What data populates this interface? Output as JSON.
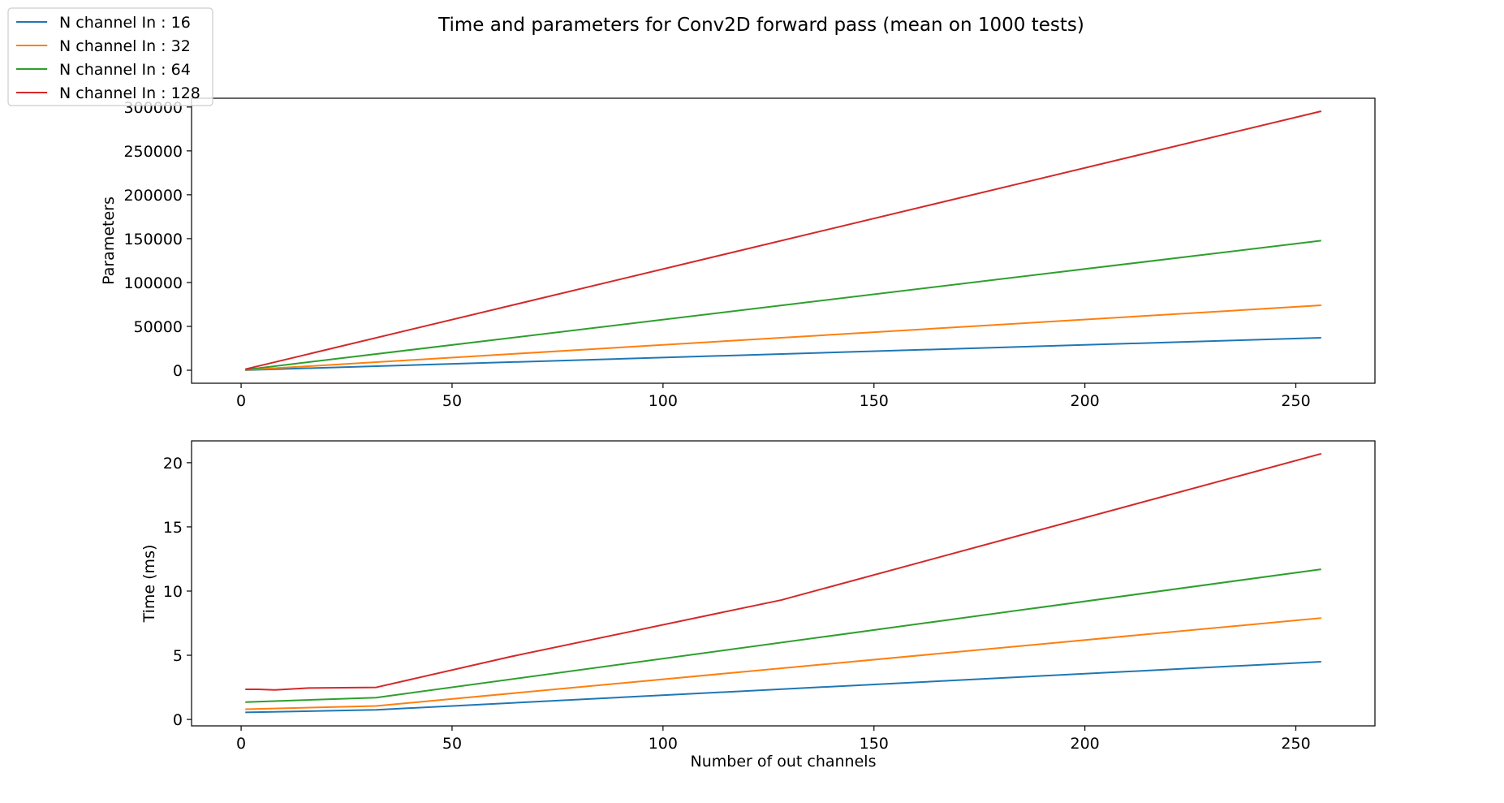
{
  "figure": {
    "title": "Time and parameters for Conv2D forward pass (mean on 1000 tests)"
  },
  "legend": {
    "placement": "top-left (outside axes)",
    "entries": [
      {
        "label": "N channel In : 16",
        "color": "#1f77b4"
      },
      {
        "label": "N channel In : 32",
        "color": "#ff7f0e"
      },
      {
        "label": "N channel In : 64",
        "color": "#2ca02c"
      },
      {
        "label": "N channel In : 128",
        "color": "#d62728"
      }
    ]
  },
  "chart_data": [
    {
      "type": "line",
      "xlabel": "",
      "ylabel": "Parameters",
      "xlim": [
        -11.75,
        268.75
      ],
      "ylim": [
        -14800,
        310000
      ],
      "xticks": [
        0,
        50,
        100,
        150,
        200,
        250
      ],
      "xtick_labels": [
        "0",
        "50",
        "100",
        "150",
        "200",
        "250"
      ],
      "yticks": [
        0,
        50000,
        100000,
        150000,
        200000,
        250000,
        300000
      ],
      "ytick_labels": [
        "0",
        "50000",
        "100000",
        "150000",
        "200000",
        "250000",
        "300000"
      ],
      "grid": false,
      "series": [
        {
          "name": "N channel In : 16",
          "color": "#1f77b4",
          "x": [
            1,
            256
          ],
          "y": [
            160,
            37000
          ]
        },
        {
          "name": "N channel In : 32",
          "color": "#ff7f0e",
          "x": [
            1,
            256
          ],
          "y": [
            300,
            74000
          ]
        },
        {
          "name": "N channel In : 64",
          "color": "#2ca02c",
          "x": [
            1,
            256
          ],
          "y": [
            600,
            147700
          ]
        },
        {
          "name": "N channel In : 128",
          "color": "#d62728",
          "x": [
            1,
            256
          ],
          "y": [
            1200,
            295200
          ]
        }
      ]
    },
    {
      "type": "line",
      "xlabel": "Number of out channels",
      "ylabel": "Time (ms)",
      "xlim": [
        -11.75,
        268.75
      ],
      "ylim": [
        -0.5,
        21.7
      ],
      "xticks": [
        0,
        50,
        100,
        150,
        200,
        250
      ],
      "xtick_labels": [
        "0",
        "50",
        "100",
        "150",
        "200",
        "250"
      ],
      "yticks": [
        0,
        5,
        10,
        15,
        20
      ],
      "ytick_labels": [
        "0",
        "5",
        "10",
        "15",
        "20"
      ],
      "grid": false,
      "series": [
        {
          "name": "N channel In : 16",
          "color": "#1f77b4",
          "x": [
            1,
            32,
            256
          ],
          "y": [
            0.55,
            0.75,
            4.5
          ]
        },
        {
          "name": "N channel In : 32",
          "color": "#ff7f0e",
          "x": [
            1,
            32,
            256
          ],
          "y": [
            0.8,
            1.05,
            7.9
          ]
        },
        {
          "name": "N channel In : 64",
          "color": "#2ca02c",
          "x": [
            1,
            32,
            256
          ],
          "y": [
            1.35,
            1.7,
            11.7
          ]
        },
        {
          "name": "N channel In : 128",
          "color": "#d62728",
          "x": [
            1,
            4,
            8,
            16,
            32,
            64,
            128,
            256
          ],
          "y": [
            2.35,
            2.35,
            2.3,
            2.45,
            2.5,
            4.9,
            9.3,
            20.7
          ]
        }
      ]
    }
  ]
}
